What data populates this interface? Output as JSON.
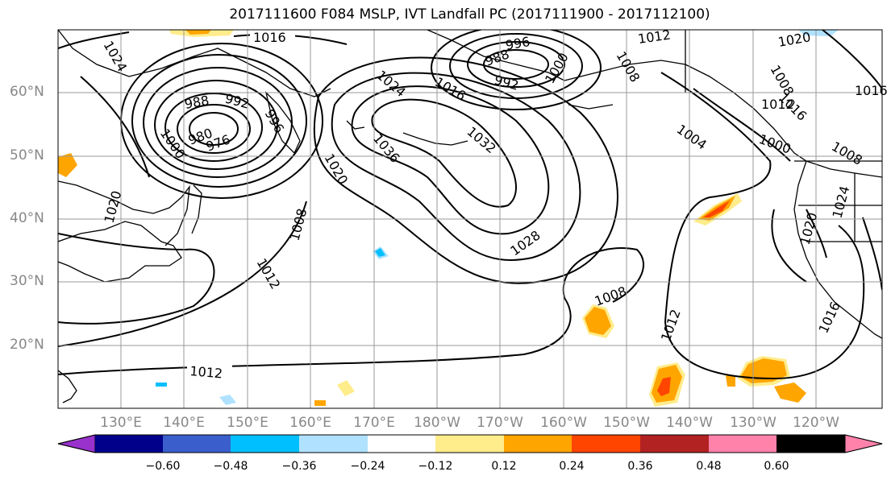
{
  "title": "2017111600 F084 MSLP, IVT Landfall PC (2017111900 - 2017112100)",
  "lat_labels": [
    "60°N",
    "50°N",
    "40°N",
    "30°N",
    "20°N"
  ],
  "lon_labels": [
    "130°E",
    "140°E",
    "150°E",
    "160°E",
    "170°E",
    "180°W",
    "170°W",
    "160°W",
    "150°W",
    "140°W",
    "130°W",
    "120°W"
  ],
  "contour_labels": [
    "1016",
    "1024",
    "992",
    "988",
    "996",
    "1000",
    "976",
    "980",
    "1024",
    "1016",
    "1012",
    "1020",
    "1000",
    "1036",
    "1032",
    "1004",
    "1020",
    "1008",
    "1012",
    "1028",
    "1008",
    "1012",
    "1016",
    "1012",
    "1020",
    "1024",
    "1008",
    "1008",
    "988",
    "996",
    "992",
    "1000",
    "1020",
    "1016",
    "1012",
    "1016",
    "1008"
  ],
  "colorbar": {
    "ticks": [
      "−0.60",
      "−0.48",
      "−0.36",
      "−0.24",
      "−0.12",
      "0.12",
      "0.24",
      "0.36",
      "0.48",
      "0.60"
    ],
    "colors": [
      "#9932CC",
      "#00008B",
      "#3A5FCD",
      "#00BFFF",
      "#B0E2FF",
      "#FFFFFF",
      "#FFEC8B",
      "#FFA500",
      "#FF4500",
      "#B22222",
      "#FF82AB"
    ]
  },
  "colors": {
    "contour": "#000000",
    "grid": "#999999",
    "axis_label": "#888888"
  }
}
